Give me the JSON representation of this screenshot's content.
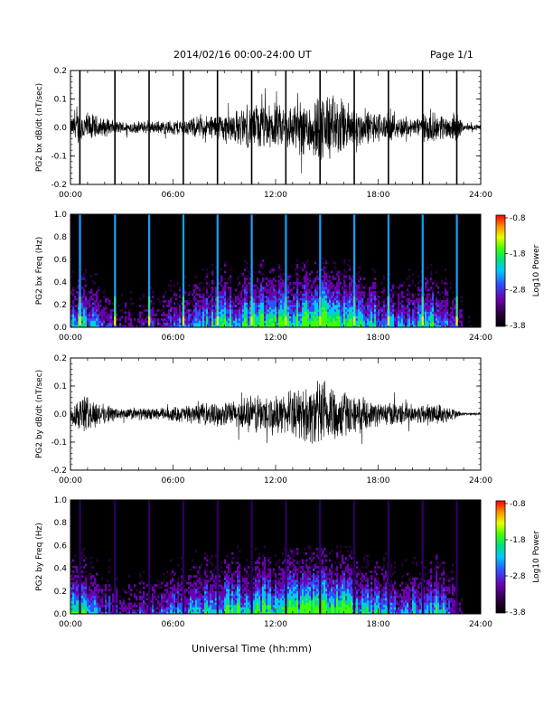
{
  "header": {
    "title": "2014/02/16  00:00-24:00 UT",
    "page": "Page 1/1"
  },
  "footer": {
    "xlabel": "Universal Time (hh:mm)"
  },
  "colors": {
    "trace": "#000000",
    "colorbar_stops": [
      "#000000",
      "#2a0040",
      "#6a00b0",
      "#3050ff",
      "#00c8ff",
      "#00e080",
      "#40ff00",
      "#e8ff00",
      "#ff9000",
      "#ff0000"
    ]
  },
  "chart_data": [
    {
      "type": "line",
      "ylabel": "PG2 bx dB/dt (nT/sec)",
      "xlim": [
        0,
        24
      ],
      "ylim": [
        -0.2,
        0.2
      ],
      "yticks": [
        "-0.2",
        "-0.1",
        "0.0",
        "0.1",
        "0.2"
      ],
      "xticks": [
        "00:00",
        "06:00",
        "12:00",
        "18:00",
        "24:00"
      ],
      "spikes_hours": [
        0.55,
        2.6,
        4.6,
        6.6,
        8.6,
        10.6,
        12.6,
        14.6,
        16.6,
        18.6,
        20.6,
        22.6
      ],
      "envelope": [
        [
          0,
          0.03
        ],
        [
          0.5,
          0.06
        ],
        [
          1,
          0.05
        ],
        [
          2,
          0.03
        ],
        [
          3,
          0.02
        ],
        [
          4,
          0.02
        ],
        [
          5,
          0.02
        ],
        [
          6,
          0.025
        ],
        [
          7,
          0.03
        ],
        [
          8,
          0.04
        ],
        [
          9,
          0.05
        ],
        [
          10,
          0.06
        ],
        [
          11,
          0.08
        ],
        [
          12,
          0.07
        ],
        [
          13,
          0.08
        ],
        [
          14,
          0.1
        ],
        [
          15,
          0.12
        ],
        [
          16,
          0.09
        ],
        [
          17,
          0.06
        ],
        [
          18,
          0.05
        ],
        [
          19,
          0.04
        ],
        [
          20,
          0.03
        ],
        [
          21,
          0.05
        ],
        [
          22,
          0.04
        ],
        [
          22.6,
          0.05
        ],
        [
          23,
          0.01
        ],
        [
          24,
          0.01
        ]
      ]
    },
    {
      "type": "heatmap",
      "ylabel": "PG2 bx Freq (Hz)",
      "colorbar_label": "Log10 Power",
      "colorbar_ticks": [
        "-0.8",
        "-1.8",
        "-2.8",
        "-3.8"
      ],
      "xlim": [
        0,
        24
      ],
      "ylim": [
        0,
        1.0
      ],
      "yticks": [
        "0.0",
        "0.2",
        "0.4",
        "0.6",
        "0.8",
        "1.0"
      ],
      "xticks": [
        "00:00",
        "06:00",
        "12:00",
        "18:00",
        "24:00"
      ],
      "spike_hours": [
        0.55,
        2.6,
        4.6,
        6.6,
        8.6,
        10.6,
        12.6,
        14.6,
        16.6,
        18.6,
        20.6,
        22.6
      ],
      "activity": [
        [
          0,
          0.5
        ],
        [
          1,
          0.4
        ],
        [
          2,
          0.2
        ],
        [
          3,
          0.15
        ],
        [
          4,
          0.15
        ],
        [
          5,
          0.2
        ],
        [
          6,
          0.25
        ],
        [
          7,
          0.3
        ],
        [
          8,
          0.4
        ],
        [
          9,
          0.5
        ],
        [
          10,
          0.55
        ],
        [
          11,
          0.6
        ],
        [
          12,
          0.55
        ],
        [
          13,
          0.6
        ],
        [
          14,
          0.7
        ],
        [
          15,
          0.8
        ],
        [
          16,
          0.6
        ],
        [
          17,
          0.45
        ],
        [
          18,
          0.4
        ],
        [
          19,
          0.35
        ],
        [
          20,
          0.3
        ],
        [
          21,
          0.45
        ],
        [
          22,
          0.4
        ],
        [
          23,
          0.1
        ],
        [
          24,
          0.05
        ]
      ]
    },
    {
      "type": "line",
      "ylabel": "PG2 by dB/dt (nT/sec)",
      "xlim": [
        0,
        24
      ],
      "ylim": [
        -0.2,
        0.2
      ],
      "yticks": [
        "-0.2",
        "-0.1",
        "0.0",
        "0.1",
        "0.2"
      ],
      "xticks": [
        "00:00",
        "06:00",
        "12:00",
        "18:00",
        "24:00"
      ],
      "envelope": [
        [
          0,
          0.03
        ],
        [
          0.5,
          0.06
        ],
        [
          1,
          0.06
        ],
        [
          2,
          0.03
        ],
        [
          3,
          0.02
        ],
        [
          4,
          0.02
        ],
        [
          5,
          0.02
        ],
        [
          6,
          0.025
        ],
        [
          7,
          0.03
        ],
        [
          8,
          0.035
        ],
        [
          9,
          0.04
        ],
        [
          10,
          0.05
        ],
        [
          11,
          0.07
        ],
        [
          12,
          0.06
        ],
        [
          13,
          0.07
        ],
        [
          14,
          0.1
        ],
        [
          15,
          0.12
        ],
        [
          16,
          0.08
        ],
        [
          17,
          0.05
        ],
        [
          18,
          0.04
        ],
        [
          19,
          0.04
        ],
        [
          20,
          0.03
        ],
        [
          21,
          0.04
        ],
        [
          22,
          0.03
        ],
        [
          23,
          0.005
        ],
        [
          24,
          0.005
        ]
      ]
    },
    {
      "type": "heatmap",
      "ylabel": "PG2 by Freq (Hz)",
      "colorbar_label": "Log10 Power",
      "colorbar_ticks": [
        "-0.8",
        "-1.8",
        "-2.8",
        "-3.8"
      ],
      "xlim": [
        0,
        24
      ],
      "ylim": [
        0,
        1.0
      ],
      "yticks": [
        "0.0",
        "0.2",
        "0.4",
        "0.6",
        "0.8",
        "1.0"
      ],
      "xticks": [
        "00:00",
        "06:00",
        "12:00",
        "18:00",
        "24:00"
      ],
      "spike_hours": [
        0.55,
        2.6,
        4.6,
        6.6,
        8.6,
        10.6,
        12.6,
        14.6,
        16.6,
        18.6,
        20.6,
        22.6
      ],
      "activity": [
        [
          0,
          0.45
        ],
        [
          1,
          0.4
        ],
        [
          2,
          0.25
        ],
        [
          3,
          0.2
        ],
        [
          4,
          0.2
        ],
        [
          5,
          0.25
        ],
        [
          6,
          0.3
        ],
        [
          7,
          0.35
        ],
        [
          8,
          0.45
        ],
        [
          9,
          0.5
        ],
        [
          10,
          0.55
        ],
        [
          11,
          0.6
        ],
        [
          12,
          0.55
        ],
        [
          13,
          0.55
        ],
        [
          14,
          0.65
        ],
        [
          15,
          0.75
        ],
        [
          16,
          0.6
        ],
        [
          17,
          0.45
        ],
        [
          18,
          0.4
        ],
        [
          19,
          0.35
        ],
        [
          20,
          0.35
        ],
        [
          21,
          0.45
        ],
        [
          22,
          0.4
        ],
        [
          23,
          0.05
        ],
        [
          24,
          0.05
        ]
      ]
    }
  ]
}
